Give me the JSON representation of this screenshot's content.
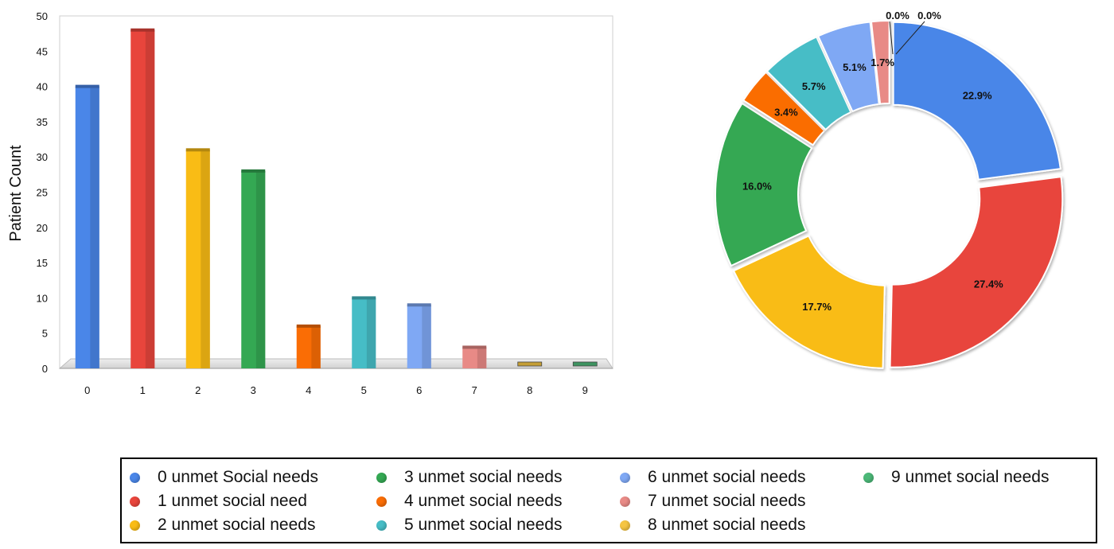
{
  "chart_data": [
    {
      "type": "bar",
      "categories": [
        "0",
        "1",
        "2",
        "3",
        "4",
        "5",
        "6",
        "7",
        "8",
        "9"
      ],
      "values": [
        40,
        48,
        31,
        28,
        6,
        10,
        9,
        3,
        0,
        0
      ],
      "ylabel": "Patient Count",
      "xlabel": "",
      "ylim": [
        0,
        50
      ],
      "yticks": [
        "0",
        "5",
        "10",
        "15",
        "20",
        "25",
        "30",
        "35",
        "40",
        "45",
        "50"
      ],
      "grid": true,
      "colors": [
        "#4A86E8",
        "#E8453C",
        "#F9BC15",
        "#34A853",
        "#FA6D05",
        "#46BDC6",
        "#7FA8F4",
        "#E88A86",
        "#F5C542",
        "#4CB878"
      ]
    },
    {
      "type": "pie",
      "donut": true,
      "slices": [
        {
          "category": "0 unmet Social needs",
          "value": 22.9,
          "label": "22.9%"
        },
        {
          "category": "1 unmet social need",
          "value": 27.4,
          "label": "27.4%"
        },
        {
          "category": "2 unmet social needs",
          "value": 17.7,
          "label": "17.7%"
        },
        {
          "category": "3 unmet social needs",
          "value": 16.0,
          "label": "16.0%"
        },
        {
          "category": "4 unmet social needs",
          "value": 3.4,
          "label": "3.4%"
        },
        {
          "category": "5 unmet social needs",
          "value": 5.7,
          "label": "5.7%"
        },
        {
          "category": "6 unmet social needs",
          "value": 5.1,
          "label": "5.1%"
        },
        {
          "category": "7 unmet social needs",
          "value": 1.7,
          "label": "1.7%"
        },
        {
          "category": "8 unmet social needs",
          "value": 0.0,
          "label": "0.0%"
        },
        {
          "category": "9 unmet social needs",
          "value": 0.0,
          "label": "0.0%"
        }
      ]
    }
  ],
  "legend": {
    "placement": "bottom",
    "items": [
      {
        "label": "0 unmet Social needs",
        "color": "#4A86E8"
      },
      {
        "label": "1 unmet social need",
        "color": "#E8453C"
      },
      {
        "label": "2 unmet social needs",
        "color": "#F9BC15"
      },
      {
        "label": "3 unmet social needs",
        "color": "#34A853"
      },
      {
        "label": "4 unmet social needs",
        "color": "#FA6D05"
      },
      {
        "label": "5 unmet social needs",
        "color": "#46BDC6"
      },
      {
        "label": "6 unmet social needs",
        "color": "#7FA8F4"
      },
      {
        "label": "7 unmet social needs",
        "color": "#E88A86"
      },
      {
        "label": "8 unmet social needs",
        "color": "#F5C542"
      },
      {
        "label": "9 unmet social needs",
        "color": "#4CB878"
      }
    ]
  }
}
